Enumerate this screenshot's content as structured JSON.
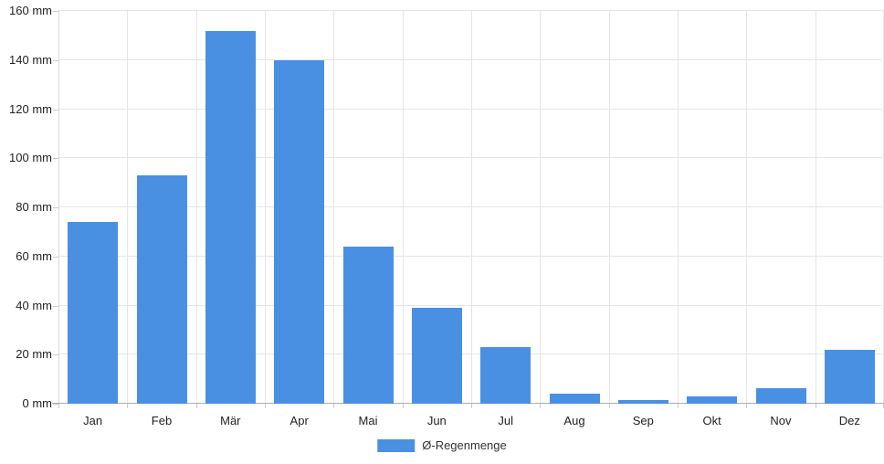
{
  "chart_data": {
    "type": "bar",
    "title": "",
    "xlabel": "",
    "ylabel": "",
    "categories": [
      "Jan",
      "Feb",
      "Mär",
      "Apr",
      "Mai",
      "Jun",
      "Jul",
      "Aug",
      "Sep",
      "Okt",
      "Nov",
      "Dez"
    ],
    "series": [
      {
        "name": "Ø-Regenmenge",
        "values": [
          74,
          93,
          152,
          140,
          64,
          39,
          23,
          4,
          1.5,
          3,
          6.5,
          22
        ]
      }
    ],
    "ylim": [
      0,
      160
    ],
    "y_tick_step": 20,
    "y_unit": "mm",
    "y_tick_labels": [
      "0 mm",
      "20 mm",
      "40 mm",
      "60 mm",
      "80 mm",
      "100 mm",
      "120 mm",
      "140 mm",
      "160 mm"
    ],
    "grid": true,
    "legend_position": "bottom-center"
  },
  "colors": {
    "bar": "#4a90e2",
    "grid": "#e6e6e6",
    "axis_line": "#d9d9d9",
    "baseline": "#adadad",
    "tick": "#cccccc",
    "text": "#222222",
    "background": "#ffffff"
  }
}
